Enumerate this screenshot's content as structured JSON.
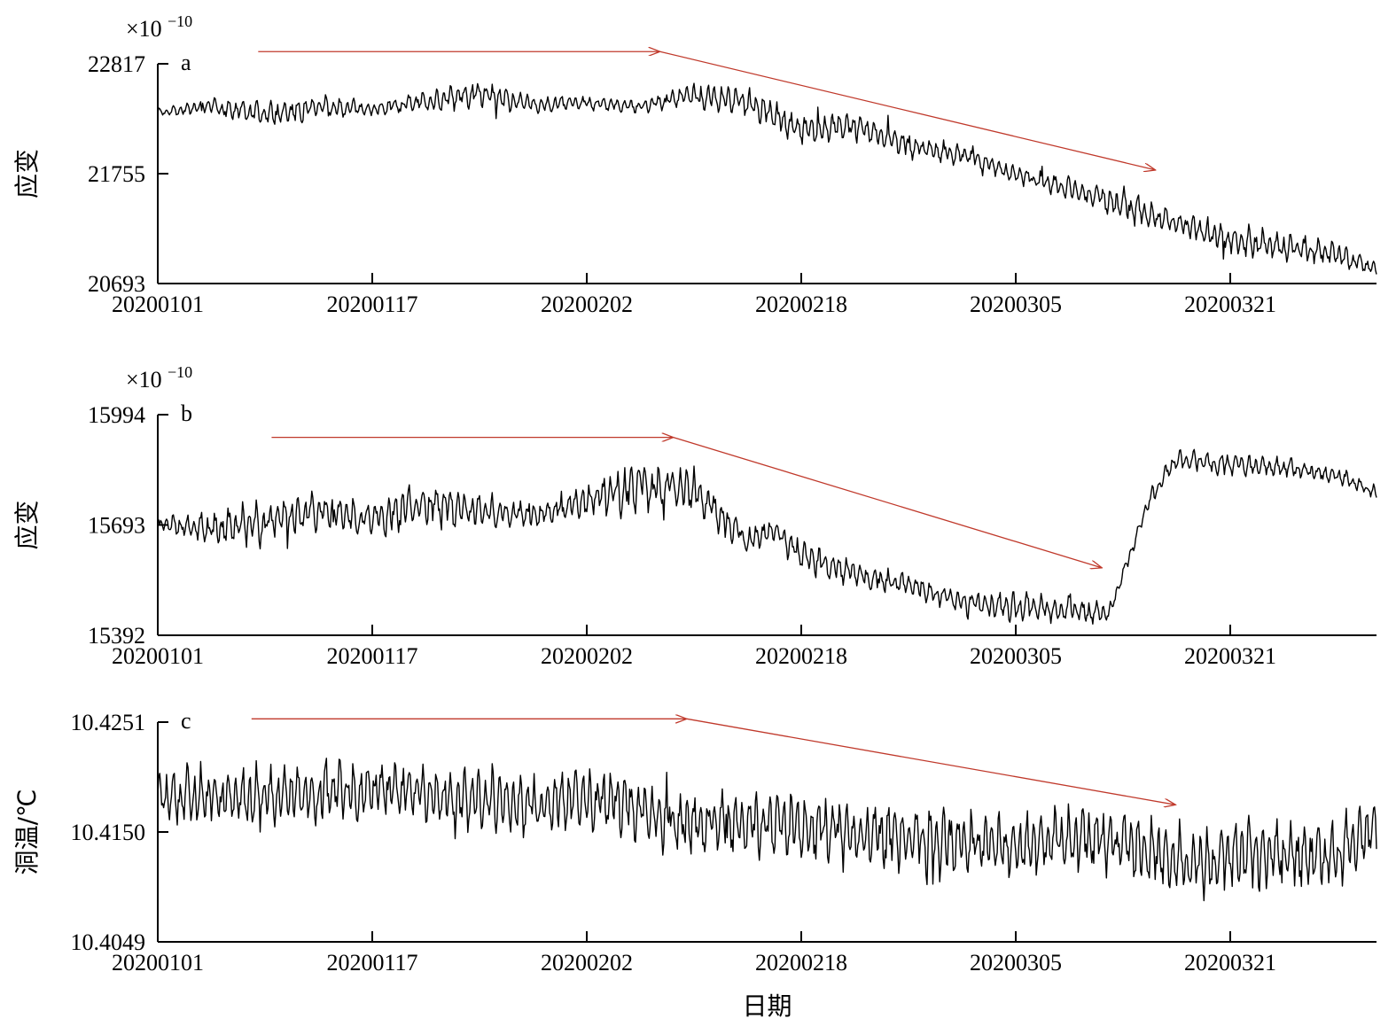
{
  "chart_data": [
    {
      "panel": "a",
      "type": "line",
      "ylabel": "应变",
      "multiplier": "×10",
      "multiplier_exp": "−10",
      "yticks": [
        "22817",
        "21755",
        "20693"
      ],
      "ylim": [
        20693,
        22817
      ],
      "xticks": [
        "20200101",
        "20200117",
        "20200202",
        "20200218",
        "20200305",
        "20200321"
      ],
      "x_range_days": [
        0,
        91
      ],
      "series": [
        {
          "anchors_day": [
            0,
            4,
            8,
            12,
            16,
            20,
            24,
            28,
            32,
            36,
            40,
            44,
            48,
            52,
            56,
            60,
            64,
            68,
            72,
            76,
            80,
            84,
            88,
            91
          ],
          "anchors_value": [
            22350,
            22400,
            22320,
            22400,
            22380,
            22450,
            22530,
            22420,
            22440,
            22400,
            22520,
            22450,
            22180,
            22220,
            22030,
            21940,
            21750,
            21620,
            21450,
            21280,
            21120,
            21050,
            20980,
            20830
          ],
          "amplitude": [
            30,
            70,
            110,
            110,
            60,
            90,
            110,
            70,
            60,
            50,
            110,
            130,
            120,
            120,
            100,
            90,
            70,
            90,
            140,
            80,
            140,
            120,
            110,
            60
          ],
          "seed": 7
        }
      ],
      "arrow_days": [
        [
          7.5,
          37.5
        ],
        [
          37.5,
          74.5
        ]
      ],
      "arrow_values": [
        [
          22935,
          22935
        ],
        [
          22935,
          21790
        ]
      ],
      "arrow_color": "#c0392b"
    },
    {
      "panel": "b",
      "type": "line",
      "ylabel": "应变",
      "multiplier": "×10",
      "multiplier_exp": "−10",
      "yticks": [
        "15994",
        "15693",
        "15392"
      ],
      "ylim": [
        15392,
        15994
      ],
      "xticks": [
        "20200101",
        "20200117",
        "20200202",
        "20200218",
        "20200305",
        "20200321"
      ],
      "x_range_days": [
        0,
        91
      ],
      "series": [
        {
          "anchors_day": [
            0,
            4,
            8,
            12,
            16,
            20,
            24,
            28,
            32,
            36,
            40,
            44,
            46,
            48,
            52,
            56,
            60,
            64,
            68,
            71,
            72,
            74,
            76,
            80,
            84,
            88,
            91
          ],
          "anchors_value": [
            15700,
            15680,
            15700,
            15730,
            15710,
            15750,
            15730,
            15720,
            15760,
            15800,
            15790,
            15650,
            15680,
            15610,
            15560,
            15530,
            15480,
            15470,
            15460,
            15450,
            15550,
            15760,
            15870,
            15860,
            15850,
            15830,
            15780
          ],
          "amplitude": [
            15,
            40,
            55,
            50,
            40,
            60,
            45,
            30,
            40,
            60,
            55,
            30,
            25,
            40,
            30,
            25,
            30,
            35,
            30,
            25,
            15,
            20,
            25,
            30,
            20,
            20,
            15
          ],
          "seed": 13
        }
      ],
      "arrow_days": [
        [
          8.5,
          38.5
        ],
        [
          38.5,
          70.5
        ]
      ],
      "arrow_values": [
        [
          15932,
          15932
        ],
        [
          15932,
          15576
        ]
      ],
      "arrow_color": "#c0392b"
    },
    {
      "panel": "c",
      "type": "line",
      "xlabel": "日期",
      "ylabel": "洞温/℃",
      "yticks": [
        "10.4251",
        "10.4150",
        "10.4049"
      ],
      "ylim": [
        10.4049,
        10.4251
      ],
      "xticks": [
        "20200101",
        "20200117",
        "20200202",
        "20200218",
        "20200305",
        "20200321"
      ],
      "x_range_days": [
        0,
        91
      ],
      "series": [
        {
          "anchors_day": [
            0,
            6,
            12,
            18,
            22,
            28,
            34,
            38,
            42,
            48,
            54,
            60,
            66,
            70,
            75,
            78,
            82,
            88,
            91
          ],
          "anchors_value": [
            10.4185,
            10.418,
            10.4185,
            10.419,
            10.418,
            10.4175,
            10.418,
            10.4158,
            10.416,
            10.4155,
            10.4145,
            10.414,
            10.4138,
            10.4145,
            10.4128,
            10.412,
            10.413,
            10.4128,
            10.4155
          ],
          "amplitude": [
            0.0022,
            0.0025,
            0.0025,
            0.0024,
            0.0024,
            0.0024,
            0.0025,
            0.0024,
            0.0026,
            0.0026,
            0.0026,
            0.0026,
            0.0026,
            0.0026,
            0.0027,
            0.0027,
            0.0028,
            0.0027,
            0.0025
          ],
          "seed": 29
        }
      ],
      "arrow_days": [
        [
          7,
          39.5
        ],
        [
          39.5,
          76
        ]
      ],
      "arrow_values": [
        [
          10.4254,
          10.4254
        ],
        [
          10.4254,
          10.4175
        ]
      ],
      "arrow_color": "#c0392b"
    }
  ]
}
